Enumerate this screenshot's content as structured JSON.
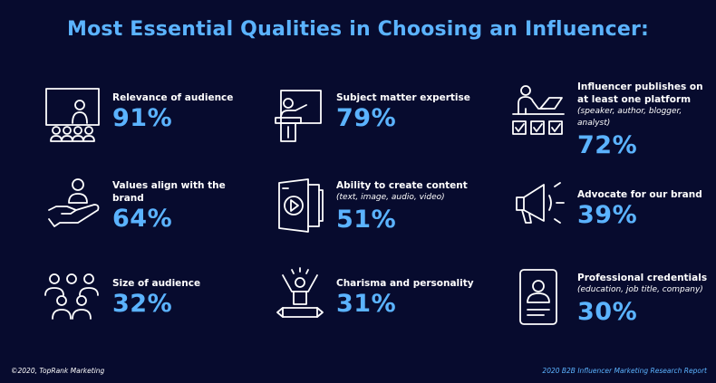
{
  "chart_data": {
    "type": "table",
    "title": "Most Essential Qualities in Choosing an Influencer:",
    "items": [
      {
        "label": "Relevance of audience",
        "note": "",
        "value": "91%",
        "icon": "audience-presentation-icon"
      },
      {
        "label": "Subject matter expertise",
        "note": "",
        "value": "79%",
        "icon": "speaker-podium-icon"
      },
      {
        "label": "Influencer publishes on at least one platform",
        "note": "(speaker, author, blogger, analyst)",
        "value": "72%",
        "icon": "publishing-checklist-icon"
      },
      {
        "label": "Values align with the brand",
        "note": "",
        "value": "64%",
        "icon": "hand-person-icon"
      },
      {
        "label": "Ability to create content",
        "note": "(text, image, audio, video)",
        "value": "51%",
        "icon": "media-content-icon"
      },
      {
        "label": "Advocate for our brand",
        "note": "",
        "value": "39%",
        "icon": "megaphone-icon"
      },
      {
        "label": "Size of audience",
        "note": "",
        "value": "32%",
        "icon": "group-people-icon"
      },
      {
        "label": "Charisma and personality",
        "note": "",
        "value": "31%",
        "icon": "cheering-person-icon"
      },
      {
        "label": "Professional credentials",
        "note": "(education, job title, company)",
        "value": "30%",
        "icon": "id-badge-icon"
      }
    ]
  },
  "footer": {
    "copyright": "©2020, TopRank Marketing",
    "source": "2020 B2B Influencer Marketing Research Report"
  },
  "colors": {
    "background": "#070b2e",
    "accent": "#5bb3ff",
    "text": "#ffffff"
  }
}
